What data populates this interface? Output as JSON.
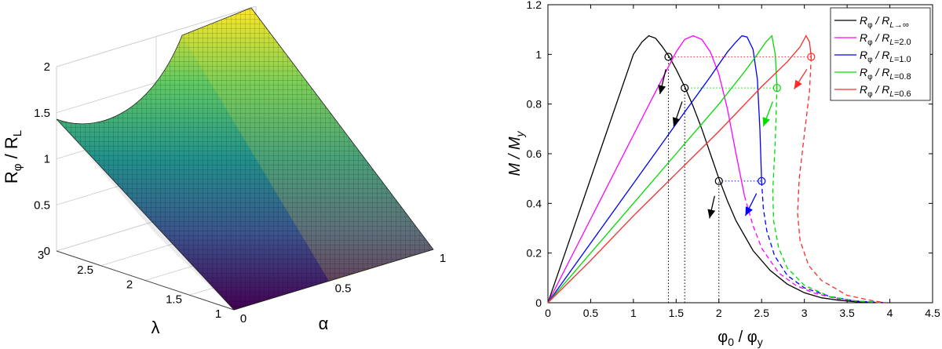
{
  "chart_data": [
    {
      "type": "surface",
      "xlabel": "α",
      "ylabel": "λ",
      "zlabel_main": "R",
      "zlabel_main_sub": "φ",
      "zlabel_sep": " / R",
      "zlabel_den_sub": "L",
      "x_ticks": [
        "0",
        "0.5",
        "1"
      ],
      "y_ticks": [
        "1",
        "1.5",
        "2",
        "2.5",
        "3"
      ],
      "z_ticks": [
        "0",
        "0.5",
        "1",
        "1.5",
        "2"
      ],
      "xlim": [
        0,
        1
      ],
      "ylim": [
        1,
        3
      ],
      "zlim": [
        0,
        2
      ],
      "colormap": [
        "#440154",
        "#3b528b",
        "#21918c",
        "#5ec962",
        "#fde725"
      ],
      "grid": true
    },
    {
      "type": "line",
      "xlabel_main": "φ",
      "xlabel_main_sub": "0",
      "xlabel_sep": " / φ",
      "xlabel_den_sub": "y",
      "ylabel_main": "M",
      "ylabel_sep": " / M",
      "ylabel_den_sub": "y",
      "xlim": [
        0,
        4.5
      ],
      "ylim": [
        0,
        1.2
      ],
      "x_ticks": [
        "0",
        "0.5",
        "1",
        "1.5",
        "2",
        "2.5",
        "3",
        "3.5",
        "4",
        "4.5"
      ],
      "y_ticks": [
        "0",
        "0.2",
        "0.4",
        "0.6",
        "0.8",
        "1",
        "1.2"
      ],
      "legend_position": "top-right",
      "series": [
        {
          "name_main": "R",
          "name_main_sub": "φ",
          "name_sep": " / R",
          "name_den_sub": "L",
          "name_tail": "→∞",
          "color": "#000000",
          "x": [
            0,
            0.2,
            0.4,
            0.6,
            0.8,
            1.0,
            1.1,
            1.18,
            1.26,
            1.34,
            1.42,
            1.5,
            1.6,
            1.7,
            1.8,
            1.9,
            2.0,
            2.1,
            2.2,
            2.4,
            2.6,
            2.8,
            3.0,
            3.2,
            3.4,
            3.6,
            3.8,
            3.95
          ],
          "y": [
            0,
            0.2,
            0.4,
            0.6,
            0.8,
            1.0,
            1.05,
            1.075,
            1.065,
            1.03,
            0.99,
            0.94,
            0.87,
            0.79,
            0.7,
            0.6,
            0.5,
            0.41,
            0.33,
            0.21,
            0.13,
            0.075,
            0.04,
            0.02,
            0.01,
            0.004,
            0.001,
            0
          ]
        },
        {
          "name_main": "R",
          "name_main_sub": "φ",
          "name_sep": " / R",
          "name_den_sub": "L",
          "name_tail": "=2.0",
          "color": "#ff00ff",
          "x": [
            0,
            0.4,
            0.8,
            1.2,
            1.41,
            1.5,
            1.6,
            1.7,
            1.8,
            1.9,
            2.0,
            2.1,
            2.2,
            2.3
          ],
          "y": [
            0,
            0.27,
            0.54,
            0.81,
            0.95,
            1.01,
            1.06,
            1.075,
            1.06,
            1.01,
            0.92,
            0.78,
            0.6,
            0.43
          ],
          "dashed": {
            "x": [
              2.3,
              2.4,
              2.5,
              2.7,
              2.9,
              3.1,
              3.4,
              3.7,
              3.95
            ],
            "y": [
              0.43,
              0.31,
              0.22,
              0.12,
              0.07,
              0.04,
              0.015,
              0.004,
              0
            ]
          }
        },
        {
          "name_main": "R",
          "name_main_sub": "φ",
          "name_sep": " / R",
          "name_den_sub": "L",
          "name_tail": "=1.0",
          "color": "#0000ff",
          "x": [
            0,
            0.5,
            1.0,
            1.5,
            1.9,
            2.1,
            2.2,
            2.27,
            2.33,
            2.4,
            2.45,
            2.48,
            2.5
          ],
          "y": [
            0,
            0.24,
            0.48,
            0.72,
            0.91,
            1.01,
            1.05,
            1.075,
            1.07,
            1.02,
            0.9,
            0.7,
            0.49
          ],
          "dashed": {
            "x": [
              2.5,
              2.52,
              2.56,
              2.65,
              2.8,
              3.0,
              3.3,
              3.6,
              3.95
            ],
            "y": [
              0.49,
              0.38,
              0.29,
              0.19,
              0.11,
              0.06,
              0.025,
              0.007,
              0
            ]
          }
        },
        {
          "name_main": "R",
          "name_main_sub": "φ",
          "name_sep": " / R",
          "name_den_sub": "L",
          "name_tail": "=0.8",
          "color": "#00dd00",
          "x": [
            0,
            0.5,
            1.0,
            1.5,
            2.0,
            2.3,
            2.45,
            2.55,
            2.62,
            2.66,
            2.68
          ],
          "y": [
            0,
            0.2,
            0.4,
            0.6,
            0.8,
            0.93,
            1.0,
            1.05,
            1.075,
            1.0,
            0.87
          ],
          "dashed": {
            "x": [
              2.68,
              2.66,
              2.63,
              2.64,
              2.7,
              2.8,
              3.0,
              3.3,
              3.6,
              3.95
            ],
            "y": [
              0.87,
              0.65,
              0.45,
              0.33,
              0.22,
              0.14,
              0.07,
              0.025,
              0.007,
              0
            ]
          }
        },
        {
          "name_main": "R",
          "name_main_sub": "φ",
          "name_sep": " / R",
          "name_den_sub": "L",
          "name_tail": "=0.6",
          "color": "#ff2a2a",
          "x": [
            0,
            0.5,
            1.0,
            1.5,
            2.0,
            2.5,
            2.8,
            2.95,
            3.02,
            3.06,
            3.08
          ],
          "y": [
            0,
            0.17,
            0.35,
            0.52,
            0.69,
            0.87,
            0.97,
            1.03,
            1.075,
            1.05,
            0.99
          ],
          "dashed": {
            "x": [
              3.08,
              3.06,
              3.0,
              2.94,
              2.92,
              2.95,
              3.05,
              3.2,
              3.5,
              3.8,
              3.95
            ],
            "y": [
              0.99,
              0.85,
              0.68,
              0.5,
              0.36,
              0.25,
              0.15,
              0.09,
              0.03,
              0.008,
              0
            ]
          }
        }
      ],
      "markers": [
        {
          "x": 1.41,
          "y": 0.99,
          "color": "#000000"
        },
        {
          "x": 1.6,
          "y": 0.865,
          "color": "#000000"
        },
        {
          "x": 2.0,
          "y": 0.49,
          "color": "#000000"
        },
        {
          "x": 2.5,
          "y": 0.49,
          "color": "#0000ff"
        },
        {
          "x": 2.68,
          "y": 0.865,
          "color": "#00dd00"
        },
        {
          "x": 3.08,
          "y": 0.99,
          "color": "#ff2a2a"
        }
      ],
      "dotted_horizontal": [
        {
          "x0": 1.41,
          "x1": 3.08,
          "y": 0.99,
          "color": "#ff2a2a"
        },
        {
          "x0": 1.6,
          "x1": 2.68,
          "y": 0.865,
          "color": "#00dd00"
        },
        {
          "x0": 2.0,
          "x1": 2.5,
          "y": 0.49,
          "color": "#0000ff"
        }
      ],
      "dotted_vertical": [
        {
          "x": 1.41,
          "y0": 0,
          "y1": 0.99
        },
        {
          "x": 1.6,
          "y0": 0,
          "y1": 0.865
        },
        {
          "x": 2.0,
          "y0": 0,
          "y1": 0.49
        }
      ],
      "arrows": [
        {
          "x0": 1.38,
          "y0": 0.94,
          "x1": 1.31,
          "y1": 0.84,
          "color": "#000000"
        },
        {
          "x0": 1.57,
          "y0": 0.81,
          "x1": 1.47,
          "y1": 0.71,
          "color": "#000000"
        },
        {
          "x0": 1.95,
          "y0": 0.43,
          "x1": 1.89,
          "y1": 0.34,
          "color": "#000000"
        },
        {
          "x0": 2.44,
          "y0": 0.44,
          "x1": 2.31,
          "y1": 0.35,
          "color": "#0000ff"
        },
        {
          "x0": 2.63,
          "y0": 0.81,
          "x1": 2.52,
          "y1": 0.71,
          "color": "#00dd00"
        },
        {
          "x0": 3.03,
          "y0": 0.94,
          "x1": 2.88,
          "y1": 0.86,
          "color": "#ff2a2a"
        }
      ]
    }
  ]
}
